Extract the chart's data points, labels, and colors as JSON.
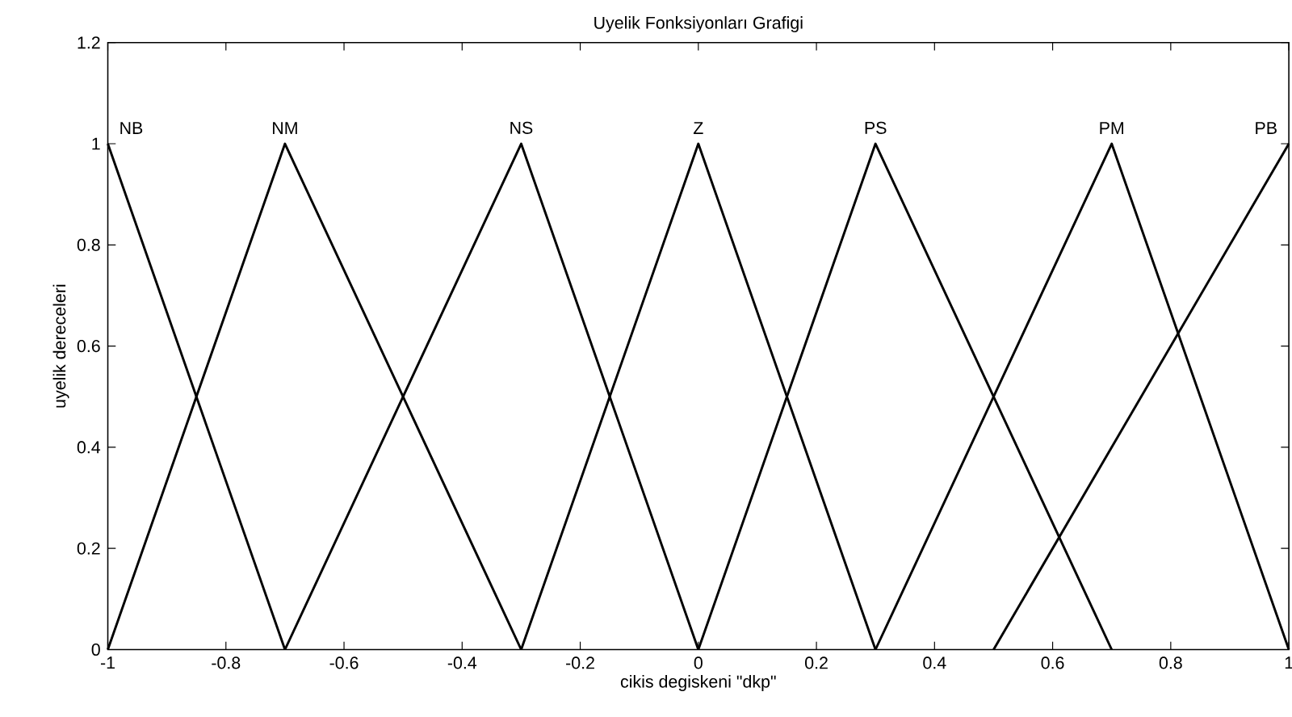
{
  "chart_data": {
    "type": "line",
    "title": "Uyelik Fonksiyonları Grafigi",
    "xlabel": "cikis degiskeni \"dkp\"",
    "ylabel": "uyelik dereceleri",
    "xlim": [
      -1,
      1
    ],
    "ylim": [
      0,
      1.2
    ],
    "xticks": [
      -1,
      -0.8,
      -0.6,
      -0.4,
      -0.2,
      0,
      0.2,
      0.4,
      0.6,
      0.8,
      1
    ],
    "yticks": [
      0,
      0.2,
      0.4,
      0.6,
      0.8,
      1,
      1.2
    ],
    "marker": "none",
    "line_style": "solid",
    "series": [
      {
        "name": "NB",
        "color": "#000000",
        "x": [
          -1,
          -0.7
        ],
        "values": [
          1,
          0
        ]
      },
      {
        "name": "NM",
        "color": "#000000",
        "x": [
          -1,
          -0.7,
          -0.3
        ],
        "values": [
          0,
          1,
          0
        ]
      },
      {
        "name": "NS",
        "color": "#000000",
        "x": [
          -0.7,
          -0.3,
          0
        ],
        "values": [
          0,
          1,
          0
        ]
      },
      {
        "name": "Z",
        "color": "#000000",
        "x": [
          -0.3,
          0,
          0.3
        ],
        "values": [
          0,
          1,
          0
        ]
      },
      {
        "name": "PS",
        "color": "#000000",
        "x": [
          0,
          0.3,
          0.7
        ],
        "values": [
          0,
          1,
          0
        ]
      },
      {
        "name": "PM",
        "color": "#000000",
        "x": [
          0.3,
          0.7,
          1
        ],
        "values": [
          0,
          1,
          0
        ]
      },
      {
        "name": "PB",
        "color": "#000000",
        "x": [
          0.5,
          1
        ],
        "values": [
          0,
          1
        ]
      }
    ]
  }
}
